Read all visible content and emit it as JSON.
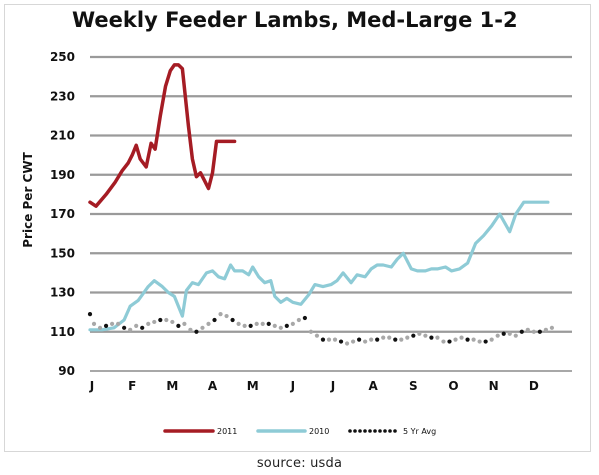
{
  "chart_data": {
    "type": "line",
    "title": "Weekly Feeder Lambs, Med-Large 1-2",
    "ylabel": "Price Per CWT",
    "xlabel": "",
    "ylim": [
      90,
      250
    ],
    "yticks": [
      90,
      110,
      130,
      150,
      170,
      190,
      210,
      230,
      250
    ],
    "xticks": [
      "J",
      "F",
      "M",
      "A",
      "M",
      "J",
      "J",
      "A",
      "S",
      "O",
      "N",
      "D"
    ],
    "grid": true,
    "legend_position": "bottom",
    "series": [
      {
        "name": "2011",
        "color": "#a51c24",
        "style": "solid",
        "x": [
          0.0,
          0.15,
          0.4,
          0.62,
          0.8,
          0.95,
          1.05,
          1.15,
          1.25,
          1.4,
          1.52,
          1.62,
          1.75,
          1.88,
          2.0,
          2.1,
          2.2,
          2.3,
          2.45,
          2.55,
          2.65,
          2.75,
          2.85,
          2.95,
          3.05,
          3.15,
          3.25,
          3.35,
          3.45,
          3.6
        ],
        "y": [
          176,
          174,
          180,
          186,
          192,
          196,
          200,
          205,
          198,
          194,
          206,
          203,
          220,
          235,
          243,
          246,
          246,
          244,
          215,
          198,
          189,
          191,
          187,
          183,
          191,
          207,
          207,
          207,
          207,
          207
        ]
      },
      {
        "name": "2010",
        "color": "#8ecbd6",
        "style": "solid",
        "x": [
          0.0,
          0.3,
          0.6,
          0.85,
          1.0,
          1.2,
          1.45,
          1.6,
          1.8,
          1.95,
          2.1,
          2.3,
          2.4,
          2.55,
          2.7,
          2.9,
          3.05,
          3.2,
          3.35,
          3.5,
          3.6,
          3.8,
          3.95,
          4.05,
          4.2,
          4.35,
          4.5,
          4.6,
          4.75,
          4.9,
          5.05,
          5.25,
          5.45,
          5.6,
          5.8,
          6.0,
          6.15,
          6.3,
          6.5,
          6.65,
          6.85,
          7.0,
          7.15,
          7.3,
          7.5,
          7.65,
          7.8,
          8.0,
          8.15,
          8.35,
          8.5,
          8.65,
          8.85,
          9.0,
          9.2,
          9.4,
          9.6,
          9.8,
          10.0,
          10.2,
          10.45,
          10.6,
          10.8,
          10.95,
          11.1,
          11.25,
          11.4
        ],
        "y": [
          111,
          111,
          112,
          116,
          123,
          126,
          133,
          136,
          133,
          130,
          128,
          118,
          131,
          135,
          134,
          140,
          141,
          138,
          137,
          144,
          141,
          141,
          139,
          143,
          138,
          135,
          136,
          128,
          125,
          127,
          125,
          124,
          129,
          134,
          133,
          134,
          136,
          140,
          135,
          139,
          138,
          142,
          144,
          144,
          143,
          147,
          150,
          142,
          141,
          141,
          142,
          142,
          143,
          141,
          142,
          145,
          155,
          159,
          164,
          170,
          161,
          170,
          176,
          176,
          176,
          176,
          176
        ]
      },
      {
        "name": "5 Yr Avg",
        "color": "#111111",
        "style": "dotted",
        "x": [
          0.0,
          0.1,
          0.25,
          0.4,
          0.55,
          0.7,
          0.85,
          1.0,
          1.15,
          1.3,
          1.45,
          1.6,
          1.75,
          1.9,
          2.05,
          2.2,
          2.35,
          2.5,
          2.65,
          2.8,
          2.95,
          3.1,
          3.25,
          3.4,
          3.55,
          3.7,
          3.85,
          4.0,
          4.15,
          4.3,
          4.45,
          4.6,
          4.75,
          4.9,
          5.05,
          5.2,
          5.35,
          5.5,
          5.65,
          5.8,
          5.95,
          6.1,
          6.25,
          6.4,
          6.55,
          6.7,
          6.85,
          7.0,
          7.15,
          7.3,
          7.45,
          7.6,
          7.75,
          7.9,
          8.05,
          8.2,
          8.35,
          8.5,
          8.65,
          8.8,
          8.95,
          9.1,
          9.25,
          9.4,
          9.55,
          9.7,
          9.85,
          10.0,
          10.15,
          10.3,
          10.45,
          10.6,
          10.75,
          10.9,
          11.05,
          11.2,
          11.35,
          11.5
        ],
        "y": [
          119,
          114,
          112,
          113,
          114,
          114,
          112,
          111,
          113,
          112,
          114,
          115,
          116,
          116,
          115,
          113,
          114,
          111,
          110,
          112,
          114,
          116,
          119,
          118,
          116,
          114,
          113,
          113,
          114,
          114,
          114,
          113,
          112,
          113,
          114,
          116,
          117,
          110,
          108,
          106,
          106,
          106,
          105,
          104,
          105,
          106,
          105,
          106,
          106,
          107,
          107,
          106,
          106,
          107,
          108,
          109,
          108,
          107,
          107,
          105,
          105,
          106,
          107,
          106,
          106,
          105,
          105,
          106,
          108,
          109,
          109,
          108,
          110,
          111,
          110,
          110,
          111,
          112
        ]
      }
    ]
  },
  "source": "source: usda"
}
